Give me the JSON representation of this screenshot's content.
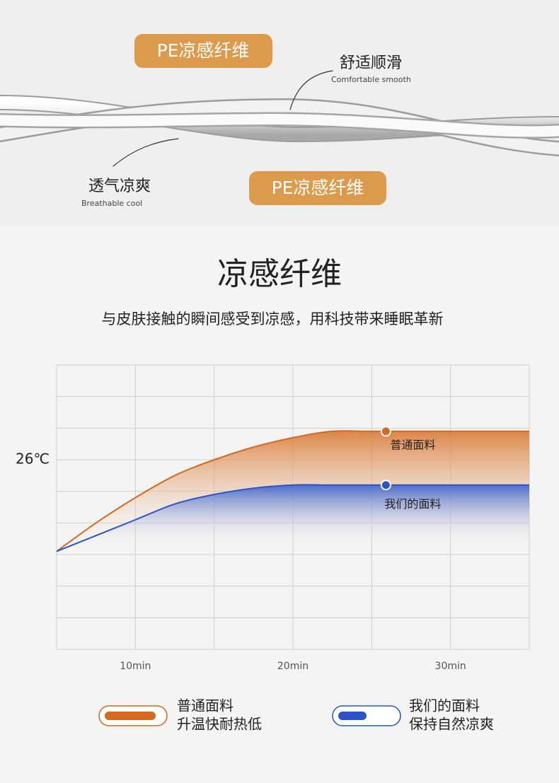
{
  "banner": {
    "badges": [
      "PE凉感纤维",
      "PE凉感纤维"
    ],
    "callouts": [
      {
        "title": "舒适顺滑",
        "subtitle": "Comfortable smooth"
      },
      {
        "title": "透气凉爽",
        "subtitle": "Breathable cool"
      }
    ]
  },
  "chart_data": {
    "type": "line",
    "title": "凉感纤维",
    "subtitle": "与皮肤接触的瞬间感受到凉感，用科技带来睡眠革新",
    "x": [
      5,
      7.5,
      10,
      12.5,
      15,
      17.5,
      20,
      22.5,
      25,
      30,
      35
    ],
    "series": [
      {
        "name": "普通面料",
        "description": "升温快耐热低",
        "color": "#d4691f",
        "values": [
          23.1,
          24.0,
          24.8,
          25.5,
          26.0,
          26.4,
          26.7,
          26.9,
          26.9,
          26.9,
          26.9
        ],
        "marker": {
          "x": 25.9,
          "y": 26.9
        }
      },
      {
        "name": "我们的面料",
        "description": "保持自然凉爽",
        "color": "#2a55c8",
        "values": [
          23.1,
          23.6,
          24.1,
          24.6,
          24.9,
          25.1,
          25.2,
          25.2,
          25.2,
          25.2,
          25.2
        ],
        "marker": {
          "x": 25.9,
          "y": 25.2
        }
      }
    ],
    "xlim": [
      5,
      35
    ],
    "xticks": [
      {
        "value": 5,
        "label": null
      },
      {
        "value": 10,
        "label": "10min"
      },
      {
        "value": 15,
        "label": null
      },
      {
        "value": 20,
        "label": "20min"
      },
      {
        "value": 25,
        "label": null
      },
      {
        "value": 30,
        "label": "30min"
      },
      {
        "value": 35,
        "label": null
      }
    ],
    "ylim": [
      20,
      29
    ],
    "yticks": [
      {
        "value": 20,
        "label": null
      },
      {
        "value": 21,
        "label": null
      },
      {
        "value": 22,
        "label": null
      },
      {
        "value": 23,
        "label": null
      },
      {
        "value": 24,
        "label": null
      },
      {
        "value": 25,
        "label": null
      },
      {
        "value": 26,
        "label": "26℃"
      },
      {
        "value": 27,
        "label": null
      },
      {
        "value": 28,
        "label": null
      },
      {
        "value": 29,
        "label": null
      }
    ],
    "grid": true
  }
}
